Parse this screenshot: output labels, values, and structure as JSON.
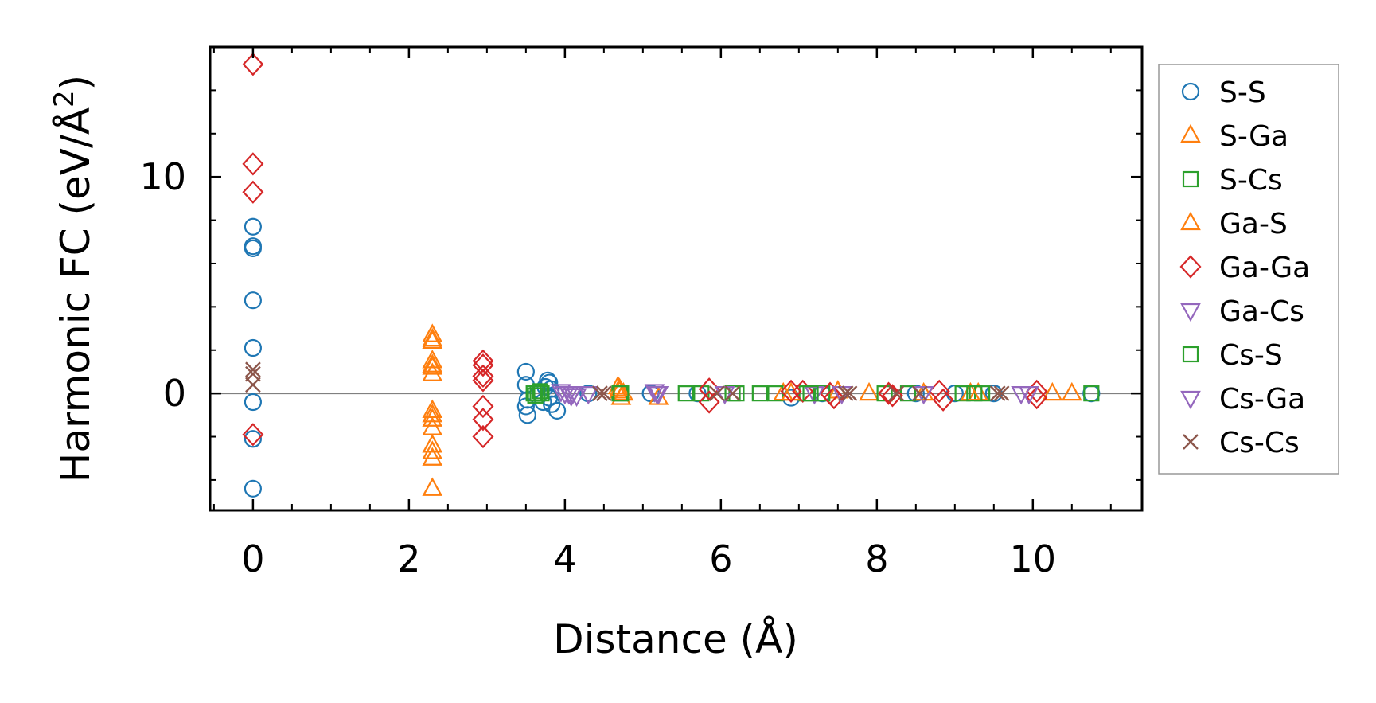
{
  "chart_data": {
    "type": "scatter",
    "xlabel": "Distance (Å)",
    "ylabel_main": "Harmonic FC (eV/Å",
    "ylabel_sup": "2",
    "ylabel_close": ")",
    "xlim": [
      -0.55,
      11.4
    ],
    "ylim": [
      -5.4,
      16.0
    ],
    "xticks": [
      0,
      2,
      4,
      6,
      8,
      10
    ],
    "xtick_labels": [
      "0",
      "2",
      "4",
      "6",
      "8",
      "10"
    ],
    "x_minor_step": 0.5,
    "yticks": [
      0,
      10
    ],
    "ytick_labels": [
      "0",
      "10"
    ],
    "y_minor_step": 2,
    "zero_line": true,
    "grid": false,
    "legend_position": "outside-right",
    "series": [
      {
        "name": "S-S",
        "marker": "circle",
        "color": "#1f77b4",
        "points": [
          [
            0,
            7.7
          ],
          [
            0,
            6.8
          ],
          [
            0,
            6.7
          ],
          [
            0,
            4.3
          ],
          [
            0,
            2.1
          ],
          [
            0,
            -0.4
          ],
          [
            0,
            -2.1
          ],
          [
            0,
            -4.4
          ],
          [
            3.5,
            1.0
          ],
          [
            3.5,
            0.4
          ],
          [
            3.52,
            -0.3
          ],
          [
            3.5,
            -0.6
          ],
          [
            3.52,
            -1.0
          ],
          [
            3.78,
            0.6
          ],
          [
            3.8,
            0.5
          ],
          [
            3.82,
            0.2
          ],
          [
            3.8,
            -0.2
          ],
          [
            3.83,
            -0.5
          ],
          [
            3.9,
            -0.8
          ],
          [
            3.75,
            0.3
          ],
          [
            3.72,
            -0.4
          ],
          [
            4.3,
            0.0
          ],
          [
            5.1,
            0.0
          ],
          [
            5.7,
            0.0
          ],
          [
            6.9,
            -0.2
          ],
          [
            7.3,
            0.0
          ],
          [
            8.5,
            0.0
          ],
          [
            9.0,
            0.0
          ],
          [
            9.5,
            0.0
          ],
          [
            10.75,
            0.0
          ]
        ]
      },
      {
        "name": "S-Ga",
        "marker": "triangle-up",
        "color": "#ff7f0e",
        "points": [
          [
            2.3,
            2.7
          ],
          [
            2.3,
            2.4
          ],
          [
            2.3,
            1.5
          ],
          [
            2.3,
            1.2
          ],
          [
            2.3,
            0.9
          ],
          [
            2.3,
            -0.8
          ],
          [
            2.3,
            -1.2
          ],
          [
            2.3,
            -1.6
          ],
          [
            2.3,
            -2.4
          ],
          [
            2.3,
            -3.0
          ],
          [
            2.3,
            -4.4
          ],
          [
            4.68,
            0.3
          ],
          [
            4.7,
            0.1
          ],
          [
            4.72,
            -0.2
          ],
          [
            4.75,
            0.0
          ],
          [
            5.2,
            -0.2
          ],
          [
            6.8,
            0.0
          ],
          [
            7.5,
            0.1
          ],
          [
            7.9,
            0.0
          ],
          [
            8.6,
            0.0
          ],
          [
            9.3,
            0.0
          ],
          [
            10.25,
            0.0
          ],
          [
            10.5,
            0.0
          ]
        ]
      },
      {
        "name": "S-Cs",
        "marker": "square",
        "color": "#2ca02c",
        "points": [
          [
            3.6,
            0.0
          ],
          [
            3.65,
            0.0
          ],
          [
            3.7,
            0.0
          ],
          [
            4.7,
            0.0
          ],
          [
            5.55,
            0.0
          ],
          [
            5.75,
            0.0
          ],
          [
            6.2,
            0.0
          ],
          [
            6.5,
            0.0
          ],
          [
            6.7,
            0.0
          ],
          [
            7.1,
            0.0
          ],
          [
            7.3,
            0.0
          ],
          [
            8.1,
            0.0
          ],
          [
            8.4,
            0.0
          ],
          [
            9.1,
            0.0
          ],
          [
            9.35,
            0.0
          ],
          [
            10.75,
            0.0
          ]
        ]
      },
      {
        "name": "Ga-S",
        "marker": "triangle-up",
        "color": "#ff7f0e",
        "points": [
          [
            2.3,
            2.5
          ],
          [
            2.3,
            1.3
          ],
          [
            2.3,
            -1.0
          ],
          [
            2.3,
            -2.7
          ],
          [
            4.7,
            0.2
          ],
          [
            6.9,
            0.0
          ],
          [
            9.2,
            0.0
          ]
        ]
      },
      {
        "name": "Ga-Ga",
        "marker": "diamond",
        "color": "#d62728",
        "points": [
          [
            0,
            15.2
          ],
          [
            0,
            10.6
          ],
          [
            0,
            9.3
          ],
          [
            0,
            -1.9
          ],
          [
            2.95,
            1.5
          ],
          [
            2.95,
            1.3
          ],
          [
            2.95,
            0.8
          ],
          [
            2.95,
            0.6
          ],
          [
            2.95,
            -0.6
          ],
          [
            2.95,
            -1.2
          ],
          [
            2.95,
            -2.0
          ],
          [
            5.85,
            0.2
          ],
          [
            5.85,
            -0.4
          ],
          [
            6.9,
            0.1
          ],
          [
            7.05,
            0.1
          ],
          [
            7.4,
            0.0
          ],
          [
            7.45,
            -0.2
          ],
          [
            8.15,
            0.0
          ],
          [
            8.2,
            -0.1
          ],
          [
            8.8,
            0.1
          ],
          [
            8.85,
            -0.3
          ],
          [
            10.05,
            0.1
          ],
          [
            10.05,
            -0.2
          ]
        ]
      },
      {
        "name": "Ga-Cs",
        "marker": "triangle-down",
        "color": "#9467bd",
        "points": [
          [
            3.95,
            0.1
          ],
          [
            4.05,
            0.0
          ],
          [
            4.1,
            0.0
          ],
          [
            4.15,
            -0.1
          ],
          [
            4.3,
            0.0
          ],
          [
            5.15,
            0.1
          ],
          [
            5.2,
            0.0
          ],
          [
            7.2,
            0.0
          ],
          [
            8.6,
            0.0
          ],
          [
            9.95,
            0.0
          ]
        ]
      },
      {
        "name": "Cs-S",
        "marker": "square",
        "color": "#2ca02c",
        "points": [
          [
            3.62,
            -0.1
          ],
          [
            3.68,
            0.1
          ],
          [
            4.72,
            0.0
          ],
          [
            6.15,
            0.0
          ],
          [
            7.15,
            0.0
          ],
          [
            9.25,
            0.0
          ]
        ]
      },
      {
        "name": "Cs-Ga",
        "marker": "triangle-down",
        "color": "#9467bd",
        "points": [
          [
            4.0,
            0.0
          ],
          [
            4.08,
            -0.1
          ],
          [
            5.18,
            0.0
          ],
          [
            6.05,
            0.0
          ],
          [
            7.55,
            0.0
          ],
          [
            9.85,
            0.0
          ]
        ]
      },
      {
        "name": "Cs-Cs",
        "marker": "x",
        "color": "#8c564b",
        "points": [
          [
            0,
            1.1
          ],
          [
            0,
            0.9
          ],
          [
            0,
            0.4
          ],
          [
            4.45,
            0.0
          ],
          [
            4.5,
            0.0
          ],
          [
            5.95,
            0.0
          ],
          [
            6.15,
            0.0
          ],
          [
            7.6,
            0.0
          ],
          [
            7.65,
            0.0
          ],
          [
            8.25,
            0.0
          ],
          [
            8.55,
            0.0
          ],
          [
            9.55,
            0.0
          ],
          [
            9.6,
            0.0
          ]
        ]
      }
    ]
  }
}
